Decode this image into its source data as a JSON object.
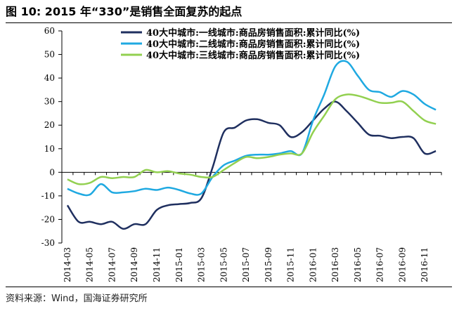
{
  "figure": {
    "title": "图 10:  2015 年“330”是销售全面复苏的起点",
    "source": "资料来源：Wind，国海证券研究所"
  },
  "chart_data": {
    "type": "line",
    "title": "",
    "xlabel": "",
    "ylabel": "",
    "ylim": [
      -30,
      60
    ],
    "yticks": [
      -30,
      -20,
      -10,
      0,
      10,
      20,
      30,
      40,
      50,
      60
    ],
    "grid": false,
    "legend_position": "top-right",
    "x": [
      "2014-03",
      "2014-04",
      "2014-05",
      "2014-06",
      "2014-07",
      "2014-08",
      "2014-09",
      "2014-10",
      "2014-11",
      "2014-12",
      "2015-01",
      "2015-02",
      "2015-03",
      "2015-04",
      "2015-05",
      "2015-06",
      "2015-07",
      "2015-08",
      "2015-09",
      "2015-10",
      "2015-11",
      "2015-12",
      "2016-01",
      "2016-02",
      "2016-03",
      "2016-04",
      "2016-05",
      "2016-06",
      "2016-07",
      "2016-08",
      "2016-09",
      "2016-10",
      "2016-11",
      "2016-12"
    ],
    "xtick_labels": [
      "2014-03",
      "2014-05",
      "2014-07",
      "2014-09",
      "2014-11",
      "2015-01",
      "2015-03",
      "2015-05",
      "2015-07",
      "2015-09",
      "2015-11",
      "2016-01",
      "2016-03",
      "2016-05",
      "2016-07",
      "2016-09",
      "2016-11"
    ],
    "series": [
      {
        "name": "40大中城市:一线城市:商品房销售面积:累计同比(%)",
        "color": "#1f2f5f",
        "values": [
          -14,
          -21,
          -21,
          -22,
          -21,
          -24,
          -22,
          -22,
          -16,
          -14,
          -13.5,
          -13,
          -11,
          2,
          17,
          19,
          22,
          22.5,
          21,
          20,
          15,
          17,
          22,
          27,
          30,
          26,
          21,
          16,
          15.5,
          14.5,
          15,
          14.5,
          8,
          9
        ]
      },
      {
        "name": "40大中城市:二线城市:商品房销售面积:累计同比(%)",
        "color": "#1fa9e1",
        "values": [
          -7,
          -9,
          -9.5,
          -5,
          -8.5,
          -8.5,
          -8,
          -7,
          -7.5,
          -6.5,
          -7.5,
          -9,
          -9,
          -2,
          3,
          5,
          7,
          7.5,
          7.5,
          8,
          9,
          8,
          22,
          33,
          45,
          47,
          41,
          35,
          34,
          32,
          34.5,
          33,
          29,
          26.5
        ]
      },
      {
        "name": "40大中城市:三线城市:商品房销售面积:累计同比(%)",
        "color": "#92d050",
        "values": [
          -3,
          -5,
          -4.5,
          -2,
          -2.5,
          -2,
          -2,
          1,
          0,
          0.5,
          -0.5,
          -1,
          -2,
          -2,
          1,
          4,
          6.5,
          6,
          6.5,
          7.5,
          8,
          8,
          17,
          24,
          31,
          33,
          32.5,
          31,
          29.5,
          29.5,
          30,
          26,
          22,
          20.5
        ]
      }
    ]
  }
}
